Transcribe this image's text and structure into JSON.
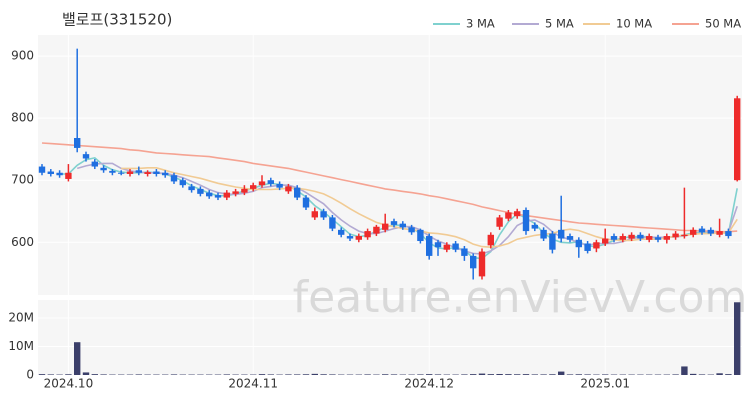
{
  "chart_data": [
    {
      "type": "candlestick",
      "title": "밸로프(331520)",
      "open": [
        722,
        714,
        712,
        702,
        768,
        742,
        730,
        720,
        715,
        712,
        710,
        716,
        710,
        714,
        712,
        708,
        700,
        690,
        686,
        680,
        676,
        672,
        678,
        680,
        686,
        692,
        700,
        694,
        682,
        688,
        672,
        640,
        650,
        640,
        620,
        610,
        604,
        608,
        614,
        620,
        634,
        630,
        624,
        620,
        610,
        600,
        588,
        598,
        590,
        578,
        545,
        595,
        625,
        638,
        642,
        652,
        628,
        620,
        614,
        620,
        610,
        604,
        598,
        590,
        598,
        610,
        604,
        606,
        612,
        604,
        608,
        604,
        608,
        610,
        612,
        622,
        620,
        612,
        618,
        700
      ],
      "high": [
        726,
        718,
        716,
        726,
        912,
        746,
        734,
        724,
        718,
        716,
        718,
        722,
        716,
        718,
        716,
        712,
        704,
        694,
        690,
        684,
        680,
        684,
        686,
        692,
        696,
        708,
        704,
        698,
        694,
        692,
        676,
        656,
        654,
        644,
        624,
        614,
        614,
        622,
        628,
        646,
        638,
        634,
        628,
        622,
        614,
        604,
        600,
        602,
        594,
        582,
        590,
        616,
        644,
        652,
        654,
        656,
        632,
        624,
        618,
        675,
        614,
        608,
        602,
        604,
        622,
        614,
        614,
        616,
        616,
        614,
        612,
        614,
        618,
        688,
        624,
        626,
        624,
        638,
        622,
        836
      ],
      "low": [
        708,
        706,
        704,
        698,
        745,
        730,
        718,
        712,
        708,
        708,
        706,
        708,
        706,
        706,
        704,
        694,
        688,
        680,
        674,
        670,
        668,
        668,
        674,
        676,
        682,
        688,
        690,
        684,
        678,
        668,
        652,
        636,
        636,
        618,
        608,
        602,
        600,
        604,
        610,
        616,
        624,
        620,
        612,
        598,
        572,
        578,
        584,
        584,
        570,
        540,
        540,
        590,
        620,
        634,
        638,
        612,
        618,
        602,
        582,
        600,
        600,
        575,
        582,
        584,
        594,
        600,
        600,
        602,
        602,
        600,
        600,
        598,
        604,
        606,
        608,
        612,
        610,
        608,
        606,
        698
      ],
      "close": [
        712,
        710,
        708,
        712,
        752,
        735,
        722,
        716,
        712,
        711,
        714,
        712,
        713,
        710,
        708,
        698,
        692,
        684,
        678,
        674,
        672,
        680,
        682,
        686,
        692,
        698,
        694,
        688,
        690,
        672,
        656,
        650,
        640,
        622,
        612,
        606,
        610,
        618,
        625,
        630,
        628,
        624,
        616,
        602,
        578,
        592,
        596,
        588,
        578,
        558,
        585,
        612,
        640,
        648,
        650,
        618,
        622,
        606,
        588,
        606,
        604,
        592,
        586,
        600,
        606,
        604,
        610,
        612,
        606,
        610,
        604,
        610,
        614,
        612,
        620,
        616,
        614,
        618,
        610,
        832
      ],
      "up_color": "#ee2b2b",
      "down_color": "#1f6fe0",
      "series": [
        {
          "name": "3 MA",
          "color": "#7fd1cf",
          "values": [
            null,
            null,
            710,
            710,
            724,
            733,
            736,
            724,
            717,
            713,
            712,
            712,
            713,
            712,
            710,
            705,
            699,
            691,
            685,
            679,
            675,
            675,
            678,
            683,
            687,
            692,
            695,
            693,
            691,
            683,
            673,
            659,
            649,
            637,
            625,
            613,
            609,
            611,
            618,
            624,
            628,
            627,
            623,
            614,
            599,
            591,
            589,
            592,
            587,
            575,
            574,
            585,
            612,
            633,
            646,
            639,
            630,
            615,
            605,
            600,
            599,
            601,
            594,
            593,
            597,
            603,
            607,
            609,
            609,
            609,
            607,
            608,
            609,
            612,
            615,
            616,
            617,
            616,
            614,
            687
          ]
        },
        {
          "name": "5 MA",
          "color": "#b3aad3",
          "values": [
            null,
            null,
            null,
            null,
            719,
            723,
            726,
            727,
            727,
            719,
            715,
            713,
            712,
            712,
            711,
            708,
            704,
            698,
            692,
            685,
            680,
            678,
            677,
            679,
            682,
            688,
            690,
            692,
            692,
            688,
            680,
            671,
            662,
            648,
            636,
            626,
            618,
            614,
            614,
            618,
            622,
            625,
            625,
            620,
            610,
            602,
            597,
            591,
            586,
            582,
            581,
            586,
            595,
            609,
            627,
            634,
            636,
            629,
            617,
            608,
            605,
            599,
            595,
            598,
            598,
            598,
            601,
            606,
            608,
            608,
            608,
            608,
            609,
            610,
            614,
            614,
            615,
            617,
            616,
            658
          ]
        },
        {
          "name": "10 MA",
          "color": "#f1cb94",
          "values": [
            null,
            null,
            null,
            null,
            null,
            null,
            null,
            null,
            null,
            719,
            719,
            719,
            720,
            720,
            716,
            712,
            709,
            706,
            703,
            699,
            695,
            692,
            689,
            687,
            685,
            685,
            685,
            686,
            687,
            687,
            685,
            682,
            678,
            671,
            663,
            654,
            646,
            639,
            632,
            628,
            625,
            622,
            620,
            618,
            615,
            614,
            612,
            609,
            604,
            597,
            593,
            592,
            594,
            598,
            605,
            608,
            611,
            613,
            614,
            619,
            621,
            619,
            614,
            609,
            605,
            604,
            603,
            603,
            605,
            605,
            605,
            607,
            610,
            611,
            613,
            614,
            614,
            615,
            615,
            637
          ]
        },
        {
          "name": "50 MA",
          "color": "#f5a392",
          "values": [
            760,
            759,
            758,
            757,
            756,
            755,
            754,
            753,
            752,
            751,
            749,
            748,
            746,
            744,
            743,
            742,
            741,
            740,
            739,
            738,
            736,
            734,
            732,
            730,
            727,
            725,
            723,
            721,
            719,
            716,
            713,
            710,
            707,
            704,
            701,
            698,
            695,
            692,
            689,
            686,
            684,
            682,
            680,
            678,
            675,
            673,
            670,
            667,
            664,
            661,
            657,
            654,
            651,
            648,
            645,
            643,
            641,
            639,
            637,
            635,
            633,
            631,
            630,
            629,
            628,
            627,
            626,
            625,
            624,
            623,
            622,
            621,
            620,
            619,
            619,
            618,
            618,
            617,
            617,
            618
          ]
        }
      ],
      "ylim": [
        515,
        934
      ],
      "yticks": [
        600,
        700,
        800,
        900
      ],
      "grid": true,
      "watermark": "feature.enVievV.com"
    },
    {
      "type": "bar",
      "categories": [
        null,
        null,
        null,
        "2024.10",
        null,
        null,
        null,
        null,
        null,
        null,
        null,
        null,
        null,
        null,
        null,
        null,
        null,
        null,
        null,
        null,
        null,
        null,
        null,
        null,
        "2024.11",
        null,
        null,
        null,
        null,
        null,
        null,
        null,
        null,
        null,
        null,
        null,
        null,
        null,
        null,
        null,
        null,
        null,
        null,
        null,
        "2024.12",
        null,
        null,
        null,
        null,
        null,
        null,
        null,
        null,
        null,
        null,
        null,
        null,
        null,
        null,
        null,
        null,
        null,
        null,
        null,
        "2025.01",
        null,
        null,
        null,
        null,
        null,
        null,
        null,
        null,
        null,
        null,
        null,
        null,
        null,
        null,
        null
      ],
      "values": [
        300000,
        200000,
        150000,
        250000,
        11500000,
        900000,
        300000,
        200000,
        150000,
        150000,
        150000,
        200000,
        150000,
        150000,
        150000,
        200000,
        150000,
        150000,
        150000,
        150000,
        150000,
        200000,
        150000,
        150000,
        150000,
        300000,
        200000,
        150000,
        200000,
        200000,
        250000,
        400000,
        250000,
        200000,
        150000,
        150000,
        150000,
        200000,
        150000,
        250000,
        200000,
        150000,
        150000,
        200000,
        300000,
        200000,
        150000,
        150000,
        200000,
        300000,
        500000,
        300000,
        350000,
        300000,
        250000,
        300000,
        200000,
        200000,
        250000,
        1200000,
        200000,
        250000,
        200000,
        150000,
        200000,
        150000,
        150000,
        150000,
        150000,
        150000,
        150000,
        150000,
        200000,
        3000000,
        400000,
        200000,
        150000,
        600000,
        300000,
        25500000
      ],
      "color": "#3b3f6a",
      "ylim": [
        0,
        26300000
      ],
      "yticks": [
        0,
        {
          "value": 10000000,
          "label": "10M"
        },
        {
          "value": 20000000,
          "label": "20M"
        }
      ],
      "grid": true
    }
  ]
}
